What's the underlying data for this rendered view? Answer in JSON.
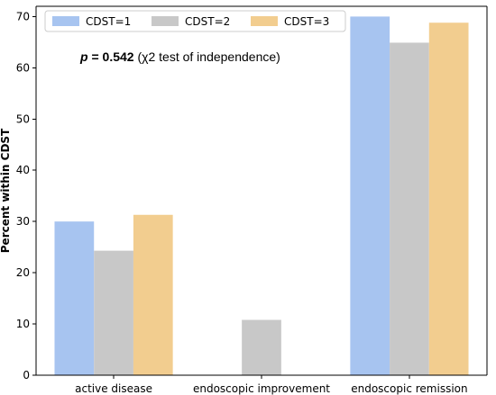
{
  "chart_data": {
    "type": "bar",
    "categories": [
      "active disease",
      "endoscopic improvement",
      "endoscopic remission"
    ],
    "series": [
      {
        "name": "CDST=1",
        "values": [
          30.0,
          0,
          70.0
        ],
        "color": "#a7c4f0"
      },
      {
        "name": "CDST=2",
        "values": [
          24.3,
          10.8,
          64.9
        ],
        "color": "#c8c8c8"
      },
      {
        "name": "CDST=3",
        "values": [
          31.3,
          0,
          68.8
        ],
        "color": "#f2cd8f"
      }
    ],
    "xlabel": "",
    "ylabel": "Percent within CDST",
    "ylim": [
      0,
      72
    ],
    "yticks": [
      0,
      10,
      20,
      30,
      40,
      50,
      60,
      70
    ],
    "grid": false,
    "legend_position": "top-left",
    "annotation": {
      "p_label": "p",
      "p_equals": " = ",
      "p_value": "0.542",
      "test": " (χ2 test of independence)"
    }
  }
}
